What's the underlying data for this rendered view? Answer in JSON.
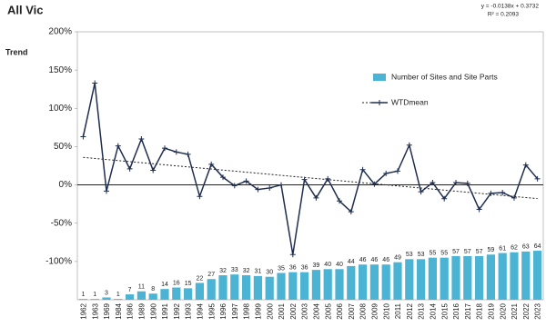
{
  "chart_data": {
    "type": "combo",
    "title": "All Vic",
    "y_label": "Trend",
    "categories": [
      "1962",
      "1963",
      "1969",
      "1984",
      "1986",
      "1989",
      "1990",
      "1991",
      "1992",
      "1993",
      "1994",
      "1995",
      "1996",
      "1997",
      "1998",
      "1999",
      "2000",
      "2001",
      "2002",
      "2003",
      "2004",
      "2005",
      "2006",
      "2007",
      "2008",
      "2009",
      "2010",
      "2011",
      "2012",
      "2013",
      "2014",
      "2015",
      "2016",
      "2017",
      "2018",
      "2019",
      "2020",
      "2021",
      "2022",
      "2023"
    ],
    "series": [
      {
        "name": "Number of Sites and Site Parts",
        "color": "#4bb3d3",
        "axis": "y2",
        "values": [
          1,
          1,
          3,
          1,
          7,
          11,
          8,
          14,
          16,
          15,
          22,
          27,
          32,
          33,
          32,
          31,
          30,
          35,
          36,
          36,
          39,
          40,
          40,
          44,
          46,
          46,
          46,
          49,
          53,
          53,
          55,
          55,
          57,
          57,
          57,
          59,
          61,
          62,
          63,
          64
        ]
      },
      {
        "name": "WTDmean",
        "color": "#1f2d4f",
        "values": [
          63,
          133,
          -8,
          51,
          21,
          60,
          19,
          48,
          43,
          40,
          -15,
          27,
          10,
          -1,
          5,
          -6,
          -4,
          0,
          -91,
          7,
          -17,
          8,
          -21,
          -35,
          20,
          1,
          15,
          18,
          52,
          -9,
          3,
          -18,
          3,
          2,
          -32,
          -11,
          -10,
          -17,
          26,
          8
        ]
      }
    ],
    "trendline": {
      "equation": "y = -0.0138x + 0.3732",
      "r2": "R² = 0.2093",
      "slope": -1.38,
      "intercept": 37.32
    },
    "ylim": [
      -150,
      200
    ],
    "yticks": [
      {
        "value": -100,
        "label": "-100%"
      },
      {
        "value": -50,
        "label": "-50%"
      },
      {
        "value": 0,
        "label": "0%"
      },
      {
        "value": 50,
        "label": "50%"
      },
      {
        "value": 100,
        "label": "100%"
      },
      {
        "value": 150,
        "label": "150%"
      },
      {
        "value": 200,
        "label": "200%"
      }
    ],
    "y2lim": [
      0,
      350
    ]
  }
}
